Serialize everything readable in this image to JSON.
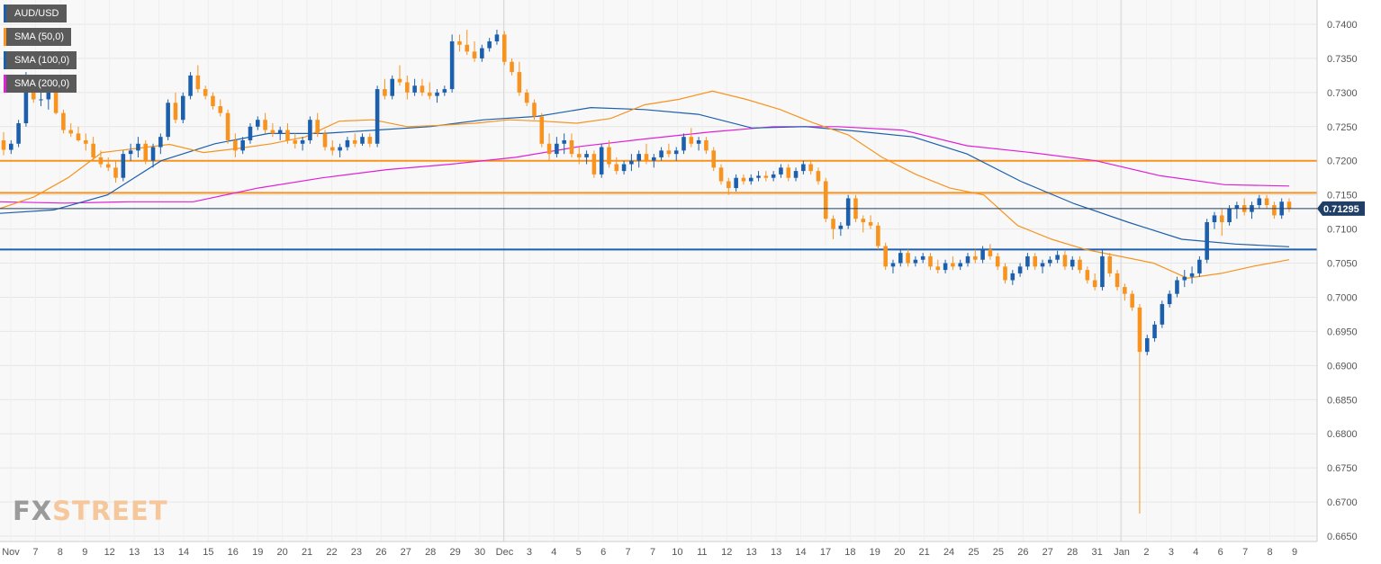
{
  "legend": [
    {
      "label": "AUD/USD",
      "color": "#1c5fad"
    },
    {
      "label": "SMA (50,0)",
      "color": "#f7931e"
    },
    {
      "label": "SMA (100,0)",
      "color": "#1c5fad"
    },
    {
      "label": "SMA (200,0)",
      "color": "#e020d8"
    }
  ],
  "watermark": {
    "fx": "FX",
    "street": "STREET"
  },
  "chart_data": {
    "type": "candlestick",
    "symbol": "AUD/USD",
    "ylim": [
      0.665,
      0.74
    ],
    "y_ticks": [
      "0.7400",
      "0.7350",
      "0.7300",
      "0.7250",
      "0.7200",
      "0.7150",
      "0.7100",
      "0.7050",
      "0.7000",
      "0.6950",
      "0.6900",
      "0.6850",
      "0.6800",
      "0.6750",
      "0.6700",
      "0.6650"
    ],
    "x_ticks": [
      "Nov",
      "7",
      "8",
      "9",
      "12",
      "13",
      "13",
      "14",
      "15",
      "16",
      "19",
      "20",
      "21",
      "22",
      "23",
      "26",
      "27",
      "28",
      "29",
      "30",
      "Dec",
      "3",
      "4",
      "5",
      "6",
      "7",
      "7",
      "10",
      "11",
      "12",
      "13",
      "13",
      "14",
      "17",
      "18",
      "19",
      "20",
      "21",
      "24",
      "25",
      "25",
      "26",
      "27",
      "28",
      "31",
      "Jan",
      "2",
      "3",
      "4",
      "6",
      "7",
      "8",
      "9"
    ],
    "current_price": {
      "value": 0.713,
      "label": "0.71295"
    },
    "horizontal_levels": [
      {
        "value": 0.72,
        "color": "#f7931e"
      },
      {
        "value": 0.7153,
        "color": "#f7931e"
      },
      {
        "value": 0.707,
        "color": "#1c5fad"
      }
    ],
    "candles": [
      [
        0.723,
        0.7242,
        0.7208,
        0.7216
      ],
      [
        0.7216,
        0.723,
        0.721,
        0.7225
      ],
      [
        0.7225,
        0.726,
        0.722,
        0.7255
      ],
      [
        0.7255,
        0.733,
        0.725,
        0.731
      ],
      [
        0.731,
        0.7316,
        0.7285,
        0.729
      ],
      [
        0.729,
        0.73,
        0.728,
        0.729
      ],
      [
        0.729,
        0.7308,
        0.7275,
        0.73
      ],
      [
        0.73,
        0.7315,
        0.7268,
        0.727
      ],
      [
        0.727,
        0.7275,
        0.724,
        0.7245
      ],
      [
        0.7245,
        0.7255,
        0.7235,
        0.724
      ],
      [
        0.724,
        0.725,
        0.7228,
        0.723
      ],
      [
        0.723,
        0.724,
        0.7215,
        0.7225
      ],
      [
        0.7225,
        0.7235,
        0.72,
        0.7205
      ],
      [
        0.7205,
        0.7215,
        0.719,
        0.7195
      ],
      [
        0.7195,
        0.7205,
        0.7185,
        0.719
      ],
      [
        0.719,
        0.72,
        0.7168,
        0.7175
      ],
      [
        0.7175,
        0.7215,
        0.717,
        0.721
      ],
      [
        0.721,
        0.7225,
        0.72,
        0.7215
      ],
      [
        0.7215,
        0.7235,
        0.7205,
        0.7225
      ],
      [
        0.7225,
        0.723,
        0.7195,
        0.72
      ],
      [
        0.72,
        0.7225,
        0.719,
        0.722
      ],
      [
        0.722,
        0.724,
        0.721,
        0.7235
      ],
      [
        0.7235,
        0.729,
        0.723,
        0.7285
      ],
      [
        0.7285,
        0.73,
        0.7255,
        0.726
      ],
      [
        0.726,
        0.73,
        0.7255,
        0.7295
      ],
      [
        0.7295,
        0.733,
        0.729,
        0.7325
      ],
      [
        0.7325,
        0.734,
        0.73,
        0.7305
      ],
      [
        0.7305,
        0.731,
        0.729,
        0.7295
      ],
      [
        0.7295,
        0.73,
        0.7275,
        0.728
      ],
      [
        0.728,
        0.729,
        0.7265,
        0.727
      ],
      [
        0.727,
        0.7275,
        0.7225,
        0.723
      ],
      [
        0.723,
        0.724,
        0.7205,
        0.7215
      ],
      [
        0.7215,
        0.7235,
        0.721,
        0.723
      ],
      [
        0.723,
        0.7255,
        0.7225,
        0.725
      ],
      [
        0.725,
        0.7265,
        0.7245,
        0.726
      ],
      [
        0.726,
        0.727,
        0.724,
        0.7245
      ],
      [
        0.7245,
        0.7255,
        0.7235,
        0.724
      ],
      [
        0.724,
        0.725,
        0.723,
        0.7245
      ],
      [
        0.7245,
        0.7255,
        0.7225,
        0.723
      ],
      [
        0.723,
        0.724,
        0.7218,
        0.7225
      ],
      [
        0.7225,
        0.7235,
        0.7215,
        0.723
      ],
      [
        0.723,
        0.7265,
        0.7225,
        0.726
      ],
      [
        0.726,
        0.727,
        0.7235,
        0.724
      ],
      [
        0.724,
        0.7245,
        0.7215,
        0.722
      ],
      [
        0.722,
        0.723,
        0.7208,
        0.7215
      ],
      [
        0.7215,
        0.7225,
        0.7205,
        0.722
      ],
      [
        0.722,
        0.7235,
        0.7215,
        0.723
      ],
      [
        0.723,
        0.724,
        0.722,
        0.7225
      ],
      [
        0.7225,
        0.724,
        0.7222,
        0.7235
      ],
      [
        0.7235,
        0.724,
        0.722,
        0.7225
      ],
      [
        0.7225,
        0.731,
        0.722,
        0.7305
      ],
      [
        0.7305,
        0.732,
        0.729,
        0.7295
      ],
      [
        0.7295,
        0.7325,
        0.729,
        0.732
      ],
      [
        0.732,
        0.734,
        0.731,
        0.7315
      ],
      [
        0.7315,
        0.7325,
        0.729,
        0.73
      ],
      [
        0.73,
        0.732,
        0.7295,
        0.731
      ],
      [
        0.731,
        0.732,
        0.7295,
        0.73
      ],
      [
        0.73,
        0.7315,
        0.729,
        0.7295
      ],
      [
        0.7295,
        0.7305,
        0.7285,
        0.73
      ],
      [
        0.73,
        0.731,
        0.7295,
        0.7305
      ],
      [
        0.7305,
        0.7385,
        0.73,
        0.7375
      ],
      [
        0.7375,
        0.7385,
        0.736,
        0.737
      ],
      [
        0.737,
        0.7392,
        0.7355,
        0.736
      ],
      [
        0.736,
        0.7375,
        0.7345,
        0.735
      ],
      [
        0.735,
        0.737,
        0.7345,
        0.7365
      ],
      [
        0.7365,
        0.738,
        0.736,
        0.7375
      ],
      [
        0.7375,
        0.7392,
        0.737,
        0.7385
      ],
      [
        0.7385,
        0.739,
        0.734,
        0.7345
      ],
      [
        0.7345,
        0.735,
        0.7325,
        0.733
      ],
      [
        0.733,
        0.7345,
        0.7295,
        0.73
      ],
      [
        0.73,
        0.7305,
        0.728,
        0.7285
      ],
      [
        0.7285,
        0.729,
        0.726,
        0.7265
      ],
      [
        0.7265,
        0.727,
        0.722,
        0.7225
      ],
      [
        0.7225,
        0.724,
        0.72,
        0.721
      ],
      [
        0.721,
        0.7235,
        0.7205,
        0.7225
      ],
      [
        0.7225,
        0.724,
        0.721,
        0.723
      ],
      [
        0.723,
        0.724,
        0.7205,
        0.721
      ],
      [
        0.721,
        0.722,
        0.7195,
        0.7205
      ],
      [
        0.7205,
        0.7215,
        0.7195,
        0.721
      ],
      [
        0.721,
        0.7215,
        0.7175,
        0.718
      ],
      [
        0.718,
        0.7225,
        0.7175,
        0.722
      ],
      [
        0.722,
        0.723,
        0.719,
        0.7195
      ],
      [
        0.7195,
        0.7205,
        0.718,
        0.7185
      ],
      [
        0.7185,
        0.72,
        0.718,
        0.7195
      ],
      [
        0.7195,
        0.721,
        0.7185,
        0.72
      ],
      [
        0.72,
        0.7215,
        0.719,
        0.721
      ],
      [
        0.721,
        0.7225,
        0.7195,
        0.72
      ],
      [
        0.72,
        0.721,
        0.719,
        0.7205
      ],
      [
        0.7205,
        0.722,
        0.72,
        0.7215
      ],
      [
        0.7215,
        0.7225,
        0.7205,
        0.721
      ],
      [
        0.721,
        0.722,
        0.72,
        0.7215
      ],
      [
        0.7215,
        0.724,
        0.721,
        0.7235
      ],
      [
        0.7235,
        0.7248,
        0.722,
        0.7225
      ],
      [
        0.7225,
        0.7235,
        0.7215,
        0.723
      ],
      [
        0.723,
        0.7235,
        0.721,
        0.7215
      ],
      [
        0.7215,
        0.722,
        0.7185,
        0.719
      ],
      [
        0.719,
        0.7195,
        0.7165,
        0.717
      ],
      [
        0.717,
        0.7175,
        0.715,
        0.716
      ],
      [
        0.716,
        0.718,
        0.7155,
        0.7175
      ],
      [
        0.7175,
        0.718,
        0.7165,
        0.717
      ],
      [
        0.717,
        0.718,
        0.7165,
        0.7175
      ],
      [
        0.7175,
        0.7185,
        0.717,
        0.7178
      ],
      [
        0.7178,
        0.7185,
        0.717,
        0.7175
      ],
      [
        0.7175,
        0.7185,
        0.717,
        0.718
      ],
      [
        0.718,
        0.7195,
        0.7175,
        0.719
      ],
      [
        0.719,
        0.7195,
        0.717,
        0.7175
      ],
      [
        0.7175,
        0.719,
        0.717,
        0.7185
      ],
      [
        0.7185,
        0.72,
        0.718,
        0.7195
      ],
      [
        0.7195,
        0.72,
        0.718,
        0.7185
      ],
      [
        0.7185,
        0.719,
        0.7165,
        0.717
      ],
      [
        0.717,
        0.7175,
        0.711,
        0.7115
      ],
      [
        0.7115,
        0.712,
        0.7085,
        0.71
      ],
      [
        0.71,
        0.711,
        0.709,
        0.7105
      ],
      [
        0.7105,
        0.715,
        0.71,
        0.7145
      ],
      [
        0.7145,
        0.715,
        0.711,
        0.7115
      ],
      [
        0.7115,
        0.712,
        0.7095,
        0.711
      ],
      [
        0.711,
        0.712,
        0.71,
        0.7105
      ],
      [
        0.7105,
        0.711,
        0.707,
        0.7075
      ],
      [
        0.7075,
        0.708,
        0.704,
        0.7045
      ],
      [
        0.7045,
        0.7055,
        0.7035,
        0.705
      ],
      [
        0.705,
        0.707,
        0.7045,
        0.7065
      ],
      [
        0.7065,
        0.707,
        0.7045,
        0.705
      ],
      [
        0.705,
        0.706,
        0.7045,
        0.7055
      ],
      [
        0.7055,
        0.7065,
        0.705,
        0.706
      ],
      [
        0.706,
        0.7065,
        0.704,
        0.7045
      ],
      [
        0.7045,
        0.7055,
        0.7035,
        0.704
      ],
      [
        0.704,
        0.7055,
        0.7035,
        0.705
      ],
      [
        0.705,
        0.706,
        0.704,
        0.7045
      ],
      [
        0.7045,
        0.7055,
        0.704,
        0.705
      ],
      [
        0.705,
        0.7065,
        0.7045,
        0.706
      ],
      [
        0.706,
        0.707,
        0.705,
        0.7055
      ],
      [
        0.7055,
        0.7075,
        0.705,
        0.707
      ],
      [
        0.707,
        0.7078,
        0.7055,
        0.706
      ],
      [
        0.706,
        0.7065,
        0.704,
        0.7045
      ],
      [
        0.7045,
        0.705,
        0.702,
        0.7025
      ],
      [
        0.7025,
        0.704,
        0.7018,
        0.7035
      ],
      [
        0.7035,
        0.705,
        0.703,
        0.7045
      ],
      [
        0.7045,
        0.7065,
        0.704,
        0.706
      ],
      [
        0.706,
        0.7065,
        0.704,
        0.7045
      ],
      [
        0.7045,
        0.7055,
        0.7035,
        0.705
      ],
      [
        0.705,
        0.706,
        0.7045,
        0.7055
      ],
      [
        0.7055,
        0.7068,
        0.705,
        0.7062
      ],
      [
        0.7062,
        0.7068,
        0.704,
        0.7045
      ],
      [
        0.7045,
        0.706,
        0.704,
        0.7055
      ],
      [
        0.7055,
        0.706,
        0.7035,
        0.704
      ],
      [
        0.704,
        0.7045,
        0.702,
        0.7025
      ],
      [
        0.7025,
        0.7035,
        0.701,
        0.7015
      ],
      [
        0.7015,
        0.707,
        0.701,
        0.706
      ],
      [
        0.706,
        0.7065,
        0.703,
        0.7035
      ],
      [
        0.7035,
        0.704,
        0.701,
        0.7015
      ],
      [
        0.7015,
        0.702,
        0.6995,
        0.7005
      ],
      [
        0.7005,
        0.701,
        0.698,
        0.6985
      ],
      [
        0.6985,
        0.699,
        0.6683,
        0.692
      ],
      [
        0.692,
        0.6945,
        0.6915,
        0.694
      ],
      [
        0.694,
        0.6965,
        0.6935,
        0.696
      ],
      [
        0.696,
        0.6995,
        0.6955,
        0.699
      ],
      [
        0.699,
        0.701,
        0.6985,
        0.7005
      ],
      [
        0.7005,
        0.703,
        0.7,
        0.7025
      ],
      [
        0.7025,
        0.704,
        0.7015,
        0.703
      ],
      [
        0.703,
        0.7045,
        0.702,
        0.7035
      ],
      [
        0.7035,
        0.706,
        0.703,
        0.7055
      ],
      [
        0.7055,
        0.7115,
        0.705,
        0.711
      ],
      [
        0.711,
        0.7125,
        0.71,
        0.712
      ],
      [
        0.712,
        0.713,
        0.709,
        0.711
      ],
      [
        0.711,
        0.7135,
        0.7105,
        0.713
      ],
      [
        0.713,
        0.714,
        0.7115,
        0.7135
      ],
      [
        0.7135,
        0.7145,
        0.712,
        0.7125
      ],
      [
        0.7125,
        0.714,
        0.7115,
        0.7135
      ],
      [
        0.7135,
        0.715,
        0.713,
        0.7145
      ],
      [
        0.7145,
        0.715,
        0.713,
        0.7135
      ],
      [
        0.7135,
        0.714,
        0.7115,
        0.712
      ],
      [
        0.712,
        0.7145,
        0.7115,
        0.714
      ],
      [
        0.714,
        0.7145,
        0.7125,
        0.713
      ]
    ],
    "sma_50": [
      0.713,
      0.7147,
      0.7175,
      0.7212,
      0.7218,
      0.7224,
      0.7212,
      0.7218,
      0.7225,
      0.7235,
      0.7258,
      0.726,
      0.725,
      0.7252,
      0.7255,
      0.726,
      0.7258,
      0.7255,
      0.7262,
      0.7282,
      0.729,
      0.7302,
      0.729,
      0.7275,
      0.7255,
      0.7238,
      0.7205,
      0.718,
      0.716,
      0.715,
      0.7105,
      0.7085,
      0.707,
      0.706,
      0.705,
      0.7028,
      0.7035,
      0.7046,
      0.7055
    ],
    "sma_100": [
      0.7123,
      0.7128,
      0.715,
      0.72,
      0.7225,
      0.724,
      0.724,
      0.7245,
      0.725,
      0.726,
      0.7265,
      0.7278,
      0.7275,
      0.7268,
      0.7248,
      0.725,
      0.7243,
      0.7235,
      0.721,
      0.717,
      0.7137,
      0.711,
      0.7085,
      0.7078,
      0.7074
    ],
    "sma_200": [
      0.714,
      0.7138,
      0.714,
      0.714,
      0.716,
      0.7175,
      0.7187,
      0.7195,
      0.7205,
      0.7221,
      0.7232,
      0.7242,
      0.725,
      0.725,
      0.7245,
      0.7222,
      0.7212,
      0.72,
      0.7178,
      0.7165,
      0.7163
    ]
  }
}
